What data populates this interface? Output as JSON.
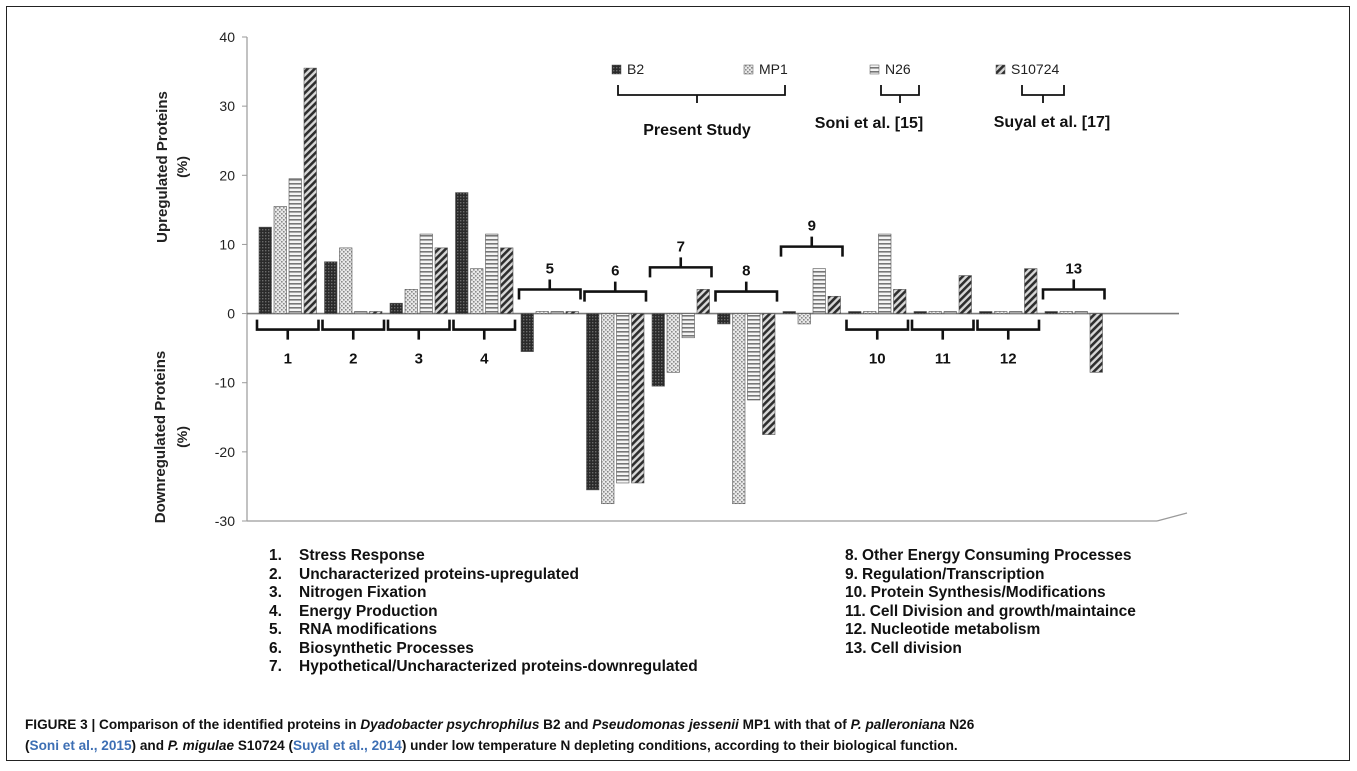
{
  "chart_data": {
    "type": "bar",
    "ylabel_top": "Upregulated Proteins",
    "ylabel_top_unit": "(%)",
    "ylabel_bottom": "Downregulated Proteins",
    "ylabel_bottom_unit": "(%)",
    "ylim": [
      -30,
      40
    ],
    "yticks": [
      "40",
      "30",
      "20",
      "10",
      "0",
      "-10",
      "-20",
      "-30"
    ],
    "grid": false,
    "legend_position": "top-right",
    "series": [
      {
        "name": "B2",
        "pattern": "dark"
      },
      {
        "name": "MP1",
        "pattern": "dotted"
      },
      {
        "name": "N26",
        "pattern": "horizontal"
      },
      {
        "name": "S10724",
        "pattern": "diagonal"
      }
    ],
    "groups": [
      {
        "label": "1",
        "up": [
          12.5,
          15.5,
          19.5,
          35.5
        ],
        "down": [
          0,
          0,
          0,
          0
        ]
      },
      {
        "label": "2",
        "up": [
          7.5,
          9.5,
          0.3,
          0.3
        ],
        "down": [
          0,
          0,
          0,
          0
        ]
      },
      {
        "label": "3",
        "up": [
          1.5,
          3.5,
          11.5,
          9.5
        ],
        "down": [
          0,
          0,
          0,
          0
        ]
      },
      {
        "label": "4",
        "up": [
          17.5,
          6.5,
          11.5,
          9.5
        ],
        "down": [
          0,
          0,
          0,
          0
        ]
      },
      {
        "label": "5",
        "up": [
          0,
          0.3,
          0.3,
          0.3
        ],
        "down": [
          -5.5,
          0,
          0,
          0
        ]
      },
      {
        "label": "6",
        "up": [
          0,
          0,
          0,
          0
        ],
        "down": [
          -25.5,
          -27.5,
          -24.5,
          -24.5
        ]
      },
      {
        "label": "7",
        "up": [
          0,
          0,
          0,
          3.5
        ],
        "down": [
          -10.5,
          -8.5,
          -3.5,
          0
        ]
      },
      {
        "label": "8",
        "up": [
          0,
          0,
          0,
          0
        ],
        "down": [
          -1.5,
          -27.5,
          -12.5,
          -17.5
        ]
      },
      {
        "label": "9",
        "up": [
          0.3,
          0,
          6.5,
          2.5
        ],
        "down": [
          0,
          -1.5,
          0,
          0
        ]
      },
      {
        "label": "10",
        "up": [
          0.3,
          0.3,
          11.5,
          3.5
        ],
        "down": [
          0,
          0,
          0,
          0
        ]
      },
      {
        "label": "11",
        "up": [
          0.3,
          0.3,
          0.3,
          5.5
        ],
        "down": [
          0,
          0,
          0,
          0
        ]
      },
      {
        "label": "12",
        "up": [
          0.3,
          0.3,
          0.3,
          6.5
        ],
        "down": [
          0,
          0,
          0,
          0
        ]
      },
      {
        "label": "13",
        "up": [
          0.3,
          0.3,
          0.3,
          0
        ],
        "down": [
          0,
          0,
          0,
          -8.5
        ]
      }
    ],
    "study_annotations": [
      "Present Study",
      "Soni et al. [15]",
      "Suyal et al. [17]"
    ]
  },
  "category_legend_left": [
    {
      "num": "1.",
      "text": "Stress Response"
    },
    {
      "num": "2.",
      "text": "Uncharacterized proteins-upregulated"
    },
    {
      "num": "3.",
      "text": "Nitrogen Fixation"
    },
    {
      "num": "4.",
      "text": "Energy Production"
    },
    {
      "num": "5.",
      "text": "RNA modifications"
    },
    {
      "num": "6.",
      "text": "Biosynthetic Processes"
    },
    {
      "num": "7.",
      "text": "Hypothetical/Uncharacterized proteins-downregulated"
    }
  ],
  "category_legend_right": [
    {
      "num": "8.",
      "text": "Other Energy Consuming Processes"
    },
    {
      "num": "9.",
      "text": "Regulation/Transcription"
    },
    {
      "num": "10.",
      "text": "Protein Synthesis/Modifications"
    },
    {
      "num": "11.",
      "text": "Cell Division and growth/maintaince"
    },
    {
      "num": "12.",
      "text": "Nucleotide metabolism"
    },
    {
      "num": "13.",
      "text": "Cell division"
    }
  ],
  "caption": {
    "prefix": "FIGURE 3 | Comparison of the identified proteins in ",
    "sp1": "Dyadobacter psychrophilus",
    "t1": " B2 and ",
    "sp2": "Pseudomonas jessenii",
    "t2": " MP1 with that of ",
    "sp3": "P. palleroniana",
    "t3": " N26",
    "cite1": "Soni et al., 2015",
    "t4": " and ",
    "sp4": "P. migulae",
    "t5": " S10724 (",
    "cite2": "Suyal et al., 2014",
    "t6": ") under low temperature N depleting conditions, according to their biological function."
  },
  "colors": {
    "B2": "#2a2a2a",
    "MP1": "#a9a9a9",
    "N26": "#8a8a8a",
    "S10724": "#3a3a3a",
    "caption_citation": "#3d6fb4"
  }
}
